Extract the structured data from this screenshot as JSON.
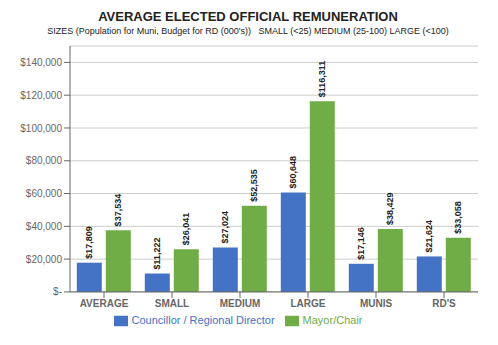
{
  "chart_data": {
    "type": "bar",
    "title": "AVERAGE ELECTED OFFICIAL REMUNERATION",
    "subtitle": "SIZES (Population for Muni, Budget for RD (000's))   SMALL (<25) MEDIUM (25-100) LARGE (<100)",
    "categories": [
      "AVERAGE",
      "SMALL",
      "MEDIUM",
      "LARGE",
      "MUNIS",
      "RD'S"
    ],
    "series": [
      {
        "name": "Councillor / Regional Director",
        "color": "#4472c4",
        "values": [
          17809,
          11222,
          27024,
          60648,
          17146,
          21624
        ],
        "value_labels": [
          "$17,809",
          "$11,222",
          "$27,024",
          "$60,648",
          "$17,146",
          "$21,624"
        ]
      },
      {
        "name": "Mayor/Chair",
        "color": "#70ad47",
        "values": [
          37534,
          26041,
          52535,
          116311,
          38429,
          33058
        ],
        "value_labels": [
          "$37,534",
          "$26,041",
          "$52,535",
          "$116,311",
          "$38,429",
          "$33,058"
        ]
      }
    ],
    "ylim": [
      0,
      150000
    ],
    "yticks": [
      {
        "value": 0,
        "label": "$-"
      },
      {
        "value": 20000,
        "label": "$20,000"
      },
      {
        "value": 40000,
        "label": "$40,000"
      },
      {
        "value": 60000,
        "label": "$60,000"
      },
      {
        "value": 80000,
        "label": "$80,000"
      },
      {
        "value": 100000,
        "label": "$100,000"
      },
      {
        "value": 120000,
        "label": "$120,000"
      },
      {
        "value": 140000,
        "label": "$140,000"
      }
    ],
    "grid": true,
    "legend": "bottom",
    "data_labels": true
  }
}
